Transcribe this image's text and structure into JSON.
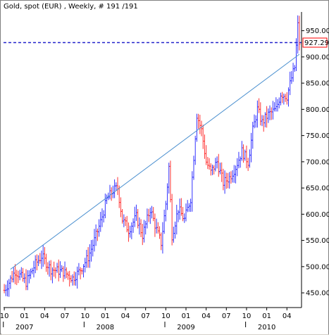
{
  "chart_data": {
    "type": "ohlc",
    "title": "Gold, spot (EUR) , Weekly, # 191 /191",
    "ylim": [
      430,
      975
    ],
    "y_ticks": [
      450,
      500,
      550,
      600,
      650,
      700,
      750,
      800,
      850,
      900,
      950
    ],
    "y_tick_labels": [
      "450.00",
      "500.00",
      "550.00",
      "600.00",
      "650.00",
      "700.00",
      "750.00",
      "800.00",
      "850.00",
      "900.00",
      "950.00"
    ],
    "x_ticks": [
      {
        "label": "10",
        "week": 0
      },
      {
        "label": "01",
        "week": 13
      },
      {
        "label": "04",
        "week": 26
      },
      {
        "label": "07",
        "week": 39
      },
      {
        "label": "10",
        "week": 52
      },
      {
        "label": "01",
        "week": 65
      },
      {
        "label": "04",
        "week": 78
      },
      {
        "label": "07",
        "week": 91
      },
      {
        "label": "10",
        "week": 104
      },
      {
        "label": "01",
        "week": 117
      },
      {
        "label": "04",
        "week": 130
      },
      {
        "label": "07",
        "week": 143
      },
      {
        "label": "10",
        "week": 156
      },
      {
        "label": "01",
        "week": 169
      },
      {
        "label": "04",
        "week": 182
      }
    ],
    "year_labels": [
      {
        "label": "2007",
        "week": 13
      },
      {
        "label": "2008",
        "week": 65
      },
      {
        "label": "2009",
        "week": 117
      },
      {
        "label": "2010",
        "week": 169
      }
    ],
    "last_price": 927.29,
    "last_price_label": "927.29",
    "trendline": {
      "from": {
        "week": 4,
        "value": 495
      },
      "to": {
        "week": 190,
        "value": 905
      }
    },
    "colors": {
      "up": "#3333ff",
      "down": "#ff3333",
      "trendline": "#4a8fcf",
      "price_line": "#2222cc",
      "price_box_border": "#ff0000"
    },
    "keypoints": [
      [
        0,
        455
      ],
      [
        3,
        470
      ],
      [
        7,
        492
      ],
      [
        11,
        480
      ],
      [
        14,
        470
      ],
      [
        20,
        505
      ],
      [
        24,
        520
      ],
      [
        30,
        495
      ],
      [
        38,
        490
      ],
      [
        44,
        478
      ],
      [
        48,
        490
      ],
      [
        54,
        518
      ],
      [
        58,
        550
      ],
      [
        62,
        585
      ],
      [
        66,
        628
      ],
      [
        70,
        645
      ],
      [
        73,
        650
      ],
      [
        76,
        590
      ],
      [
        80,
        570
      ],
      [
        85,
        595
      ],
      [
        89,
        560
      ],
      [
        94,
        610
      ],
      [
        98,
        570
      ],
      [
        101,
        545
      ],
      [
        104,
        620
      ],
      [
        106,
        690
      ],
      [
        108,
        560
      ],
      [
        112,
        610
      ],
      [
        116,
        590
      ],
      [
        120,
        630
      ],
      [
        124,
        790
      ],
      [
        127,
        760
      ],
      [
        130,
        700
      ],
      [
        133,
        680
      ],
      [
        137,
        700
      ],
      [
        141,
        660
      ],
      [
        145,
        670
      ],
      [
        149,
        690
      ],
      [
        153,
        720
      ],
      [
        157,
        700
      ],
      [
        160,
        760
      ],
      [
        163,
        800
      ],
      [
        166,
        775
      ],
      [
        170,
        790
      ],
      [
        175,
        800
      ],
      [
        178,
        830
      ],
      [
        182,
        825
      ],
      [
        185,
        860
      ],
      [
        187,
        880
      ],
      [
        189,
        960
      ],
      [
        190,
        927
      ]
    ]
  }
}
